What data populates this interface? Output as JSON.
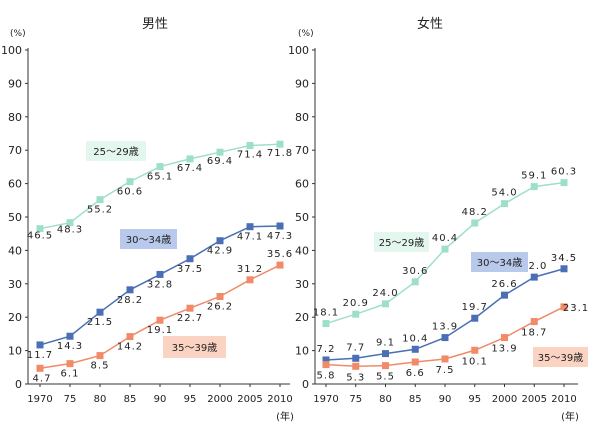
{
  "chart_data": [
    {
      "type": "line",
      "title": "男性",
      "ylabel": "(%)",
      "xlabel": "(年)",
      "ylim": [
        0,
        100
      ],
      "yticks": [
        0,
        10,
        20,
        30,
        40,
        50,
        60,
        70,
        80,
        90,
        100
      ],
      "x": [
        1970,
        1975,
        1980,
        1985,
        1990,
        1995,
        2000,
        2005,
        2010
      ],
      "xtick_labels": [
        "1970",
        "75",
        "80",
        "85",
        "90",
        "95",
        "2000",
        "2005",
        "2010"
      ],
      "grid": false,
      "series": [
        {
          "name": "25～29歳",
          "color": "#9ee0c7",
          "values": [
            46.5,
            48.3,
            55.2,
            60.6,
            65.1,
            67.4,
            69.4,
            71.4,
            71.8
          ],
          "labels": [
            "46.5",
            "48.3",
            "55.2",
            "60.6",
            "65.1",
            "67.4",
            "69.4",
            "71.4",
            "71.8"
          ]
        },
        {
          "name": "30～34歳",
          "color": "#4a6fb5",
          "values": [
            11.7,
            14.3,
            21.5,
            28.2,
            32.8,
            37.5,
            42.9,
            47.1,
            47.3
          ],
          "labels": [
            "11.7",
            "14.3",
            "21.5",
            "28.2",
            "32.8",
            "37.5",
            "42.9",
            "47.1",
            "47.3"
          ]
        },
        {
          "name": "35～39歳",
          "color": "#f08a68",
          "values": [
            4.7,
            6.1,
            8.5,
            14.2,
            19.1,
            22.7,
            26.2,
            31.2,
            35.6
          ],
          "labels": [
            "4.7",
            "6.1",
            "8.5",
            "14.2",
            "19.1",
            "22.7",
            "26.2",
            "31.2",
            "35.6"
          ]
        }
      ]
    },
    {
      "type": "line",
      "title": "女性",
      "ylabel": "(%)",
      "xlabel": "(年)",
      "ylim": [
        0,
        100
      ],
      "yticks": [
        0,
        10,
        20,
        30,
        40,
        50,
        60,
        70,
        80,
        90,
        100
      ],
      "x": [
        1970,
        1975,
        1980,
        1985,
        1990,
        1995,
        2000,
        2005,
        2010
      ],
      "xtick_labels": [
        "1970",
        "75",
        "80",
        "85",
        "90",
        "95",
        "2000",
        "2005",
        "2010"
      ],
      "grid": false,
      "series": [
        {
          "name": "25～29歳",
          "color": "#9ee0c7",
          "values": [
            18.1,
            20.9,
            24.0,
            30.6,
            40.4,
            48.2,
            54.0,
            59.1,
            60.3
          ],
          "labels": [
            "18.1",
            "20.9",
            "24.0",
            "30.6",
            "40.4",
            "48.2",
            "54.0",
            "59.1",
            "60.3"
          ]
        },
        {
          "name": "30～34歳",
          "color": "#4a6fb5",
          "values": [
            7.2,
            7.7,
            9.1,
            10.4,
            13.9,
            19.7,
            26.6,
            32.0,
            34.5
          ],
          "labels": [
            "7.2",
            "7.7",
            "9.1",
            "10.4",
            "13.9",
            "19.7",
            "26.6",
            "32.0",
            "34.5"
          ]
        },
        {
          "name": "35～39歳",
          "color": "#f08a68",
          "values": [
            5.8,
            5.3,
            5.5,
            6.6,
            7.5,
            10.1,
            13.9,
            18.7,
            23.1
          ],
          "labels": [
            "5.8",
            "5.3",
            "5.5",
            "6.6",
            "7.5",
            "10.1",
            "13.9",
            "18.7",
            "23.1"
          ]
        }
      ]
    }
  ],
  "legend_boxes": {
    "fill": {
      "s0": "#e3f7ef",
      "s1": "#b9c9ec",
      "s2": "#fbd3c2"
    }
  }
}
